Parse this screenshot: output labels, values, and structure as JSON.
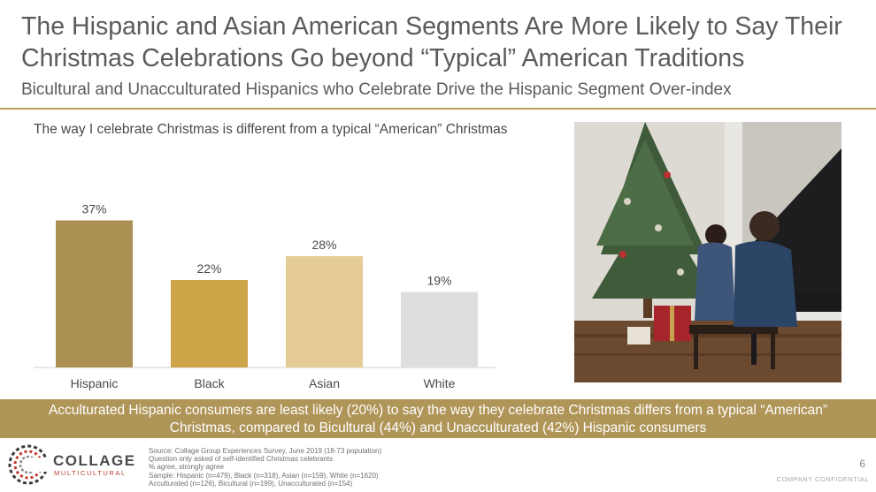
{
  "title": "The Hispanic and Asian American Segments Are More Likely to Say Their Christmas Celebrations Go beyond “Typical” American Traditions",
  "subtitle": "Bicultural and Unacculturated Hispanics who Celebrate Drive the Hispanic Segment Over-index",
  "chart_data": {
    "type": "bar",
    "title": "The way I celebrate Christmas is different from a typical “American” Christmas",
    "categories": [
      "Hispanic",
      "Black",
      "Asian",
      "White"
    ],
    "values": [
      37,
      22,
      28,
      19
    ],
    "data_labels": [
      "37%",
      "22%",
      "28%",
      "19%"
    ],
    "colors": [
      "#ab8f53",
      "#cea449",
      "#e5cc95",
      "#dedede"
    ],
    "ylim": [
      0,
      60
    ],
    "grid": false,
    "legend": "none"
  },
  "banner": {
    "line1": "Acculturated Hispanic consumers are least likely (20%) to say the way they celebrate Christmas differs from a typical “American”",
    "line2": "Christmas, compared to Bicultural (44%) and Unacculturated (42%) Hispanic consumers"
  },
  "logo": {
    "line1": "COLLAGE",
    "line2": "MULTICULTURAL"
  },
  "footnotes": [
    "Source: Collage Group Experiences Survey, June 2019 (18-73 population)",
    "Question only asked of self-identified Christmas celebrants",
    "% agree, strongly agree",
    "Sample: Hispanic (n=479), Black (n=318), Asian (n=159), White (n=1620)",
    "Acculturated (n=126), Bicultural (n=199), Unacculturated (n=154)"
  ],
  "page_number": "6",
  "confidential": "COMPANY CONFIDENTIAL"
}
